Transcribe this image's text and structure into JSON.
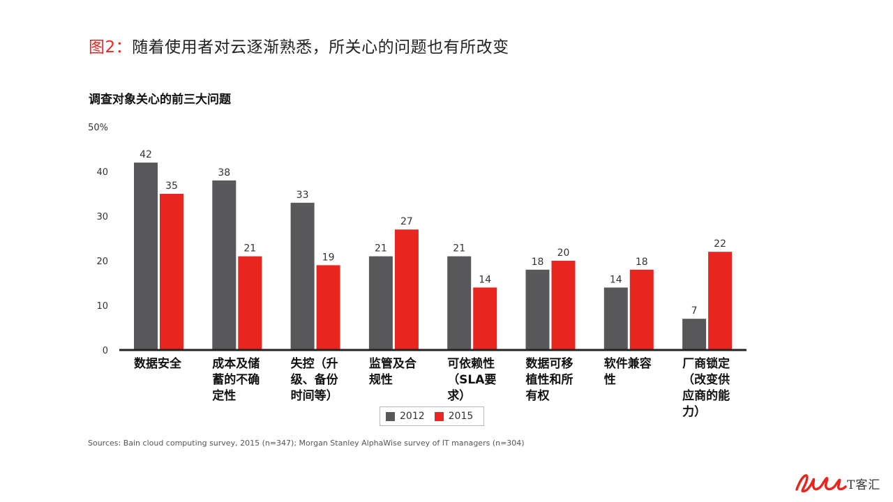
{
  "header": {
    "prefix": "图2：",
    "text": "随着使用者对云逐渐熟悉，所关心的问题也有所改变"
  },
  "chart_data": {
    "type": "bar",
    "title": "调查对象关心的前三大问题",
    "categories": [
      "数据安全",
      "成本及储\n蓄的不确\n定性",
      "失控（升\n级、备份\n时间等）",
      "监管及合\n规性",
      "可依赖性\n（SLA要\n求）",
      "数据可移\n植性和所\n有权",
      "软件兼容\n性",
      "厂商锁定\n（改变供\n应商的能\n力）"
    ],
    "series": [
      {
        "name": "2012",
        "values": [
          42,
          38,
          33,
          21,
          21,
          18,
          14,
          7
        ],
        "color": "#58585a"
      },
      {
        "name": "2015",
        "values": [
          35,
          21,
          19,
          27,
          14,
          20,
          18,
          22
        ],
        "color": "#e8261f"
      }
    ],
    "y_ticks": [
      "0",
      "10",
      "20",
      "30",
      "40",
      "50%"
    ],
    "ylim": [
      0,
      50
    ],
    "grid": false,
    "legend_position": "bottom"
  },
  "source": "Sources: Bain cloud computing survey, 2015 (n=347); Morgan Stanley AlphaWise survey of IT managers (n=304)",
  "logo": {
    "text": "T客汇",
    "colors": {
      "mark": "#e8261f"
    }
  }
}
